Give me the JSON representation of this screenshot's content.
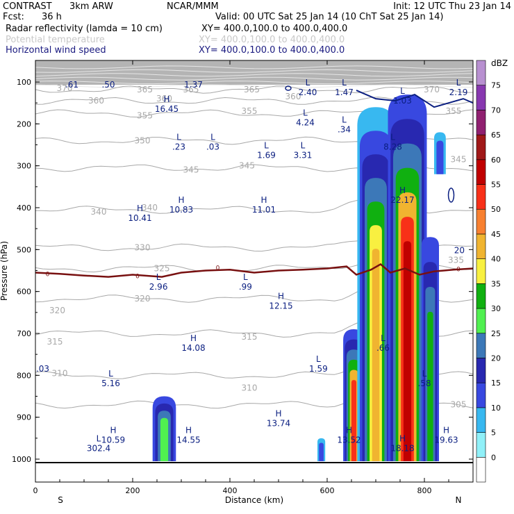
{
  "header": {
    "program": "CONTRAST",
    "model": "3km ARW",
    "institution": "NCAR/MMM",
    "init": "Init: 12 UTC Thu 23 Jan 14",
    "fcst_label": "Fcst:",
    "fcst_value": "36 h",
    "valid": "Valid: 00 UTC Sat 25 Jan 14 (10 ChT Sat 25 Jan 14)",
    "field1": "Radar reflectivity (lamda = 10 cm)",
    "field1_xy": "XY= 400.0,100.0 to 400.0,400.0",
    "field2": "Potential temperature",
    "field2_xy": "XY= 400.0,100.0 to 400.0,400.0",
    "field3": "Horizontal wind speed",
    "field3_xy": "XY= 400.0,100.0 to 400.0,400.0"
  },
  "colors": {
    "reflectivity": [
      "#ffffff",
      "#90f0f8",
      "#38b8f0",
      "#3848e0",
      "#2828b0",
      "#3c78b8",
      "#50f050",
      "#10b010",
      "#f8f040",
      "#f0b430",
      "#f88030",
      "#f83018",
      "#c00000",
      "#a01818",
      "#902070",
      "#8838b0",
      "#b890d0"
    ],
    "theta": "#a8a8a8",
    "wind": "#0a1e80",
    "freezing": "#781010"
  },
  "chart_data": {
    "type": "heatmap",
    "title": "Radar reflectivity (lamda = 10 cm)",
    "xlabel": "Distance (km)",
    "ylabel": "Pressure (hPa)",
    "xlim": [
      0,
      900
    ],
    "ylim": [
      1050,
      50
    ],
    "x_ticks": [
      "0",
      "200",
      "400",
      "600",
      "800"
    ],
    "y_ticks": [
      "100",
      "200",
      "300",
      "400",
      "500",
      "600",
      "700",
      "800",
      "900",
      "1000"
    ],
    "end_labels": {
      "left": "S",
      "right": "N"
    },
    "colorbar": {
      "unit": "dBZ",
      "levels": [
        "0",
        "5",
        "10",
        "15",
        "20",
        "25",
        "30",
        "35",
        "40",
        "45",
        "50",
        "55",
        "60",
        "65",
        "70",
        "75"
      ]
    },
    "theta_labels": [
      {
        "x": 60,
        "p": 115,
        "text": "370"
      },
      {
        "x": 225,
        "p": 118,
        "text": "365"
      },
      {
        "x": 320,
        "p": 118,
        "text": "365"
      },
      {
        "x": 445,
        "p": 118,
        "text": "365"
      },
      {
        "x": 815,
        "p": 118,
        "text": "370"
      },
      {
        "x": 125,
        "p": 145,
        "text": "360"
      },
      {
        "x": 265,
        "p": 140,
        "text": "360"
      },
      {
        "x": 530,
        "p": 135,
        "text": "360"
      },
      {
        "x": 225,
        "p": 180,
        "text": "355"
      },
      {
        "x": 440,
        "p": 170,
        "text": "355"
      },
      {
        "x": 860,
        "p": 170,
        "text": "355"
      },
      {
        "x": 220,
        "p": 240,
        "text": "350"
      },
      {
        "x": 320,
        "p": 310,
        "text": "345"
      },
      {
        "x": 435,
        "p": 300,
        "text": "345"
      },
      {
        "x": 870,
        "p": 285,
        "text": "345"
      },
      {
        "x": 130,
        "p": 410,
        "text": "340"
      },
      {
        "x": 235,
        "p": 400,
        "text": "340"
      },
      {
        "x": 220,
        "p": 495,
        "text": "330"
      },
      {
        "x": 865,
        "p": 525,
        "text": "335"
      },
      {
        "x": 260,
        "p": 545,
        "text": "325"
      },
      {
        "x": 220,
        "p": 617,
        "text": "320"
      },
      {
        "x": 45,
        "p": 645,
        "text": "320"
      },
      {
        "x": 40,
        "p": 720,
        "text": "315"
      },
      {
        "x": 440,
        "p": 708,
        "text": "315"
      },
      {
        "x": 50,
        "p": 795,
        "text": "310"
      },
      {
        "x": 440,
        "p": 830,
        "text": "310"
      },
      {
        "x": 870,
        "p": 870,
        "text": "305"
      }
    ],
    "wind_extrema": [
      {
        "x": 75,
        "p": 100,
        "type": "",
        "value": ".61"
      },
      {
        "x": 150,
        "p": 100,
        "type": "",
        "value": ".50"
      },
      {
        "x": 325,
        "p": 100,
        "type": "",
        "value": "1.37"
      },
      {
        "x": 560,
        "p": 118,
        "type": "L",
        "value": "2.40"
      },
      {
        "x": 635,
        "p": 118,
        "type": "L",
        "value": "1.47"
      },
      {
        "x": 755,
        "p": 138,
        "type": "L",
        "value": "1.03"
      },
      {
        "x": 870,
        "p": 118,
        "type": "L",
        "value": "2.19"
      },
      {
        "x": 270,
        "p": 158,
        "type": "H",
        "value": "16.45"
      },
      {
        "x": 555,
        "p": 190,
        "type": "L",
        "value": "4.24"
      },
      {
        "x": 635,
        "p": 207,
        "type": "L",
        "value": ".34"
      },
      {
        "x": 735,
        "p": 248,
        "type": "L",
        "value": "8.28"
      },
      {
        "x": 295,
        "p": 248,
        "type": "L",
        "value": ".23"
      },
      {
        "x": 365,
        "p": 248,
        "type": "L",
        "value": ".03"
      },
      {
        "x": 475,
        "p": 268,
        "type": "L",
        "value": "1.69"
      },
      {
        "x": 550,
        "p": 268,
        "type": "L",
        "value": "3.31"
      },
      {
        "x": 300,
        "p": 398,
        "type": "H",
        "value": "10.83"
      },
      {
        "x": 470,
        "p": 398,
        "type": "H",
        "value": "11.01"
      },
      {
        "x": 215,
        "p": 418,
        "type": "H",
        "value": "10.41"
      },
      {
        "x": 755,
        "p": 375,
        "type": "H",
        "value": "22.17"
      },
      {
        "x": 872,
        "p": 495,
        "type": "",
        "value": "20"
      },
      {
        "x": 253,
        "p": 582,
        "type": "L",
        "value": "2.96"
      },
      {
        "x": 432,
        "p": 582,
        "type": "L",
        "value": ".99"
      },
      {
        "x": 505,
        "p": 628,
        "type": "H",
        "value": "12.15"
      },
      {
        "x": 325,
        "p": 728,
        "type": "H",
        "value": "14.08"
      },
      {
        "x": 715,
        "p": 728,
        "type": "L",
        "value": ".66"
      },
      {
        "x": 582,
        "p": 778,
        "type": "L",
        "value": "1.59"
      },
      {
        "x": 15,
        "p": 778,
        "type": "",
        "value": ".03"
      },
      {
        "x": 155,
        "p": 813,
        "type": "L",
        "value": "5.16"
      },
      {
        "x": 800,
        "p": 813,
        "type": "L",
        "value": ".58"
      },
      {
        "x": 500,
        "p": 908,
        "type": "H",
        "value": "13.74"
      },
      {
        "x": 160,
        "p": 948,
        "type": "H",
        "value": "10.59"
      },
      {
        "x": 315,
        "p": 948,
        "type": "H",
        "value": "14.55"
      },
      {
        "x": 645,
        "p": 948,
        "type": "H",
        "value": "13.52"
      },
      {
        "x": 755,
        "p": 968,
        "type": "H",
        "value": "18.18"
      },
      {
        "x": 845,
        "p": 948,
        "type": "H",
        "value": "19.63"
      },
      {
        "x": 130,
        "p": 968,
        "type": "L",
        "value": "302.4"
      }
    ],
    "cells": [
      {
        "dbz": [
          10,
          15,
          20,
          25
        ],
        "x": 265,
        "p_top": 850,
        "p_bot": 1005,
        "half_width": 24
      },
      {
        "dbz": [
          5,
          10
        ],
        "x": 588,
        "p_top": 950,
        "p_bot": 1005,
        "half_width": 8
      },
      {
        "dbz": [
          10,
          15,
          20,
          30,
          40,
          50
        ],
        "x": 655,
        "p_top": 690,
        "p_bot": 1005,
        "half_width": 22
      },
      {
        "dbz": [
          5,
          10,
          15,
          20,
          30,
          35,
          40
        ],
        "x": 700,
        "p_top": 160,
        "p_bot": 1005,
        "half_width": 38
      },
      {
        "dbz": [
          10,
          15,
          20,
          30,
          40,
          50,
          55
        ],
        "x": 765,
        "p_top": 130,
        "p_bot": 1005,
        "half_width": 40
      },
      {
        "dbz": [
          10,
          15,
          20,
          30
        ],
        "x": 812,
        "p_top": 470,
        "p_bot": 1005,
        "half_width": 18
      },
      {
        "dbz": [
          5,
          10
        ],
        "x": 832,
        "p_top": 220,
        "p_bot": 320,
        "half_width": 12
      }
    ],
    "freezing_level": {
      "label": "0",
      "points": [
        [
          0,
          555
        ],
        [
          50,
          558
        ],
        [
          100,
          562
        ],
        [
          150,
          565
        ],
        [
          200,
          560
        ],
        [
          260,
          565
        ],
        [
          300,
          555
        ],
        [
          350,
          550
        ],
        [
          400,
          548
        ],
        [
          450,
          555
        ],
        [
          500,
          550
        ],
        [
          550,
          548
        ],
        [
          600,
          545
        ],
        [
          640,
          540
        ],
        [
          660,
          560
        ],
        [
          690,
          548
        ],
        [
          710,
          535
        ],
        [
          730,
          555
        ],
        [
          760,
          545
        ],
        [
          790,
          560
        ],
        [
          820,
          552
        ],
        [
          860,
          548
        ],
        [
          900,
          545
        ]
      ]
    },
    "wind_contour_labels": [
      {
        "x": 375,
        "p": 542,
        "text": "0"
      },
      {
        "x": 870,
        "p": 545,
        "text": "0"
      },
      {
        "x": 25,
        "p": 557,
        "text": "0"
      },
      {
        "x": 210,
        "p": 562,
        "text": "0"
      }
    ]
  }
}
